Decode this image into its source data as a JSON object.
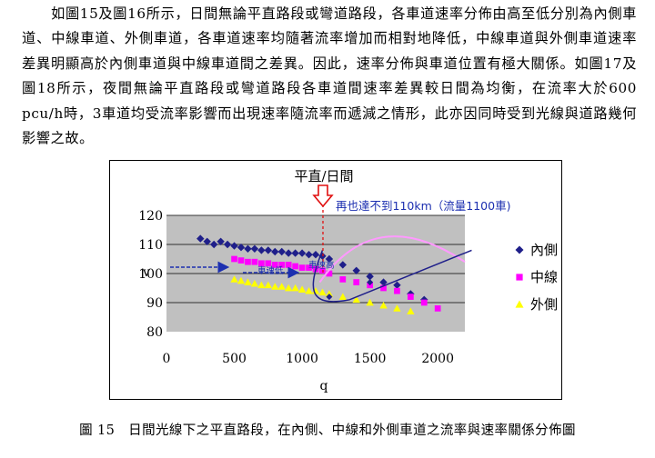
{
  "paragraph": "如圖15及圖16所示，日間無論平直路段或彎道路段，各車道速率分佈由高至低分別為內側車道、中線車道、外側車道，各車道速率均隨著流率增加而相對地降低，中線車道與外側車道速率差異明顯高於內側車道與中線車道間之差異。因此，速率分佈與車道位置有極大關係。如圖17及圖18所示，夜間無論平直路段或彎道路段各車道間速率差異較日間為均衡，在流率大於600 pcu/h時，3車道均受流率影響而出現速率隨流率而遞減之情形，此亦因同時受到光線與道路幾何影響之故。",
  "caption": "圖 15　日間光線下之平直路段，在內側、中線和外側車道之流率與速率關係分佈圖",
  "chart_data": {
    "type": "scatter",
    "title": "平直/日間",
    "xlabel": "q",
    "ylabel": "v",
    "xlim": [
      0,
      2200
    ],
    "ylim": [
      80,
      120
    ],
    "x_ticks": [
      "0",
      "500",
      "1000",
      "1500",
      "2000"
    ],
    "y_ticks": [
      "80",
      "90",
      "100",
      "110",
      "120"
    ],
    "grid": true,
    "legend_position": "right",
    "series": [
      {
        "name": "內側",
        "color": "#1f1f8a",
        "marker": "diamond",
        "points": [
          [
            250,
            112
          ],
          [
            300,
            111
          ],
          [
            350,
            110
          ],
          [
            400,
            111
          ],
          [
            450,
            110
          ],
          [
            500,
            109.5
          ],
          [
            550,
            109
          ],
          [
            600,
            108.5
          ],
          [
            650,
            108.5
          ],
          [
            700,
            108
          ],
          [
            750,
            108
          ],
          [
            800,
            107.5
          ],
          [
            850,
            107.5
          ],
          [
            900,
            107
          ],
          [
            950,
            107
          ],
          [
            1000,
            107
          ],
          [
            1050,
            106.5
          ],
          [
            1100,
            106.5
          ],
          [
            1150,
            106
          ],
          [
            1200,
            105
          ],
          [
            1300,
            103
          ],
          [
            1400,
            101
          ],
          [
            1500,
            99
          ],
          [
            1600,
            97
          ],
          [
            1700,
            96
          ],
          [
            1800,
            93
          ],
          [
            1900,
            91
          ]
        ]
      },
      {
        "name": "中線",
        "color": "#ff00ff",
        "marker": "square",
        "points": [
          [
            500,
            105
          ],
          [
            550,
            104.5
          ],
          [
            600,
            104
          ],
          [
            650,
            104
          ],
          [
            700,
            103.5
          ],
          [
            750,
            103.5
          ],
          [
            800,
            103
          ],
          [
            850,
            103
          ],
          [
            900,
            103
          ],
          [
            950,
            102.5
          ],
          [
            1000,
            102
          ],
          [
            1050,
            102
          ],
          [
            1100,
            101.5
          ],
          [
            1150,
            101
          ],
          [
            1200,
            100
          ],
          [
            1300,
            98
          ],
          [
            1400,
            97
          ],
          [
            1500,
            96
          ],
          [
            1600,
            95
          ],
          [
            1700,
            94
          ],
          [
            1800,
            92
          ],
          [
            1900,
            90
          ],
          [
            2000,
            88
          ]
        ]
      },
      {
        "name": "外側",
        "color": "#ffff00",
        "marker": "triangle",
        "points": [
          [
            500,
            98
          ],
          [
            550,
            97.5
          ],
          [
            600,
            97
          ],
          [
            650,
            96.5
          ],
          [
            700,
            96
          ],
          [
            750,
            96
          ],
          [
            800,
            95.5
          ],
          [
            850,
            95.5
          ],
          [
            900,
            95
          ],
          [
            950,
            95
          ],
          [
            1000,
            94.5
          ],
          [
            1050,
            94
          ],
          [
            1100,
            94
          ],
          [
            1150,
            93.5
          ],
          [
            1200,
            93
          ],
          [
            1300,
            92
          ],
          [
            1400,
            91
          ],
          [
            1500,
            90
          ],
          [
            1600,
            89
          ],
          [
            1700,
            88
          ],
          [
            1800,
            87
          ]
        ]
      }
    ],
    "annotations": {
      "callout": "再也達不到110km（流量1100車)",
      "low_speed": "車速低",
      "high_speed": "車速高"
    }
  }
}
